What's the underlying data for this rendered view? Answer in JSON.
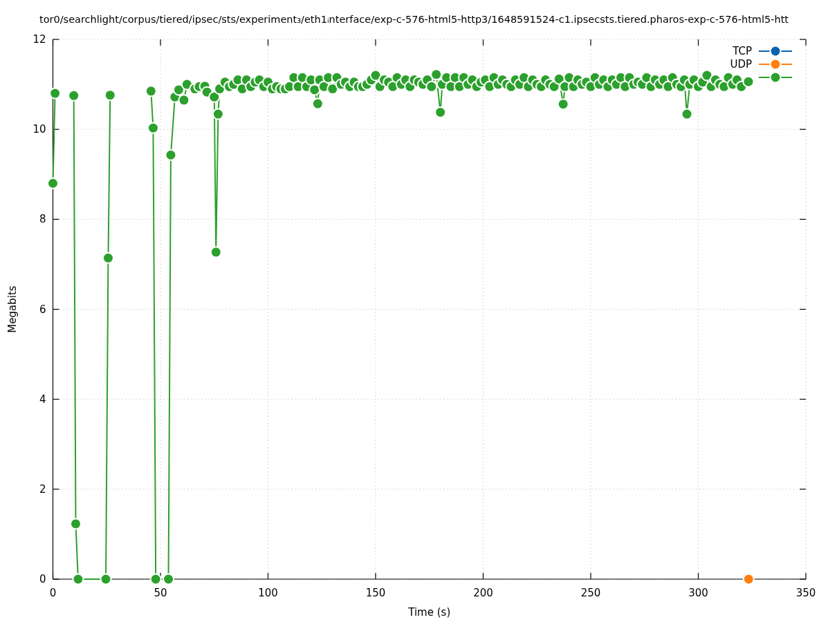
{
  "chart_data": {
    "type": "line",
    "title": "tor0/searchlight/corpus/tiered/ipsec/sts/experiment₃/eth1ᵢnterface/exp-c-576-html5-http3/1648591524-c1.ipsecsts.tiered.pharos-exp-c-576-html5-htt",
    "xlabel": "Time (s)",
    "ylabel": "Megabits",
    "xlim": [
      0,
      350
    ],
    "xticks": [
      0,
      50,
      100,
      150,
      200,
      250,
      300,
      350
    ],
    "ylim": [
      0,
      12
    ],
    "yticks": [
      0,
      2,
      4,
      6,
      8,
      10,
      12
    ],
    "grid": true,
    "legend": "top right",
    "marker": "circle",
    "line_style": "solid",
    "series": [
      {
        "name": "TCP",
        "color": "#0b62b0"
      },
      {
        "name": "UDP",
        "color": "#ff7f0e",
        "x": [
          323.4
        ],
        "values": [
          0
        ]
      },
      {
        "color": "#2ca02c",
        "x": [
          0,
          1,
          5,
          9.7,
          10.6,
          11.7,
          24.6,
          25.7,
          26.6,
          35,
          45.6,
          46.6,
          47.8,
          53.7,
          54.8,
          56.7,
          58.5,
          60.9,
          62.3,
          66,
          68,
          70.6,
          71.6,
          75,
          75.8,
          76.8,
          77.5,
          80,
          82,
          84,
          86,
          88,
          90,
          92,
          94,
          96,
          98,
          100,
          102,
          104,
          106,
          108,
          110,
          112,
          114,
          116,
          118,
          120,
          121.6,
          123.1,
          124,
          126,
          128,
          130,
          132,
          134,
          136,
          138,
          140,
          142,
          144,
          146,
          148,
          150,
          152,
          154,
          156,
          158,
          160,
          162,
          164,
          166,
          168,
          170,
          172,
          174,
          176,
          178.2,
          180.1,
          181,
          183,
          185,
          187,
          189,
          191,
          193,
          195,
          197,
          199,
          201,
          203,
          205,
          207,
          209,
          211,
          213,
          215,
          217,
          219,
          221,
          223,
          225,
          227,
          229,
          231,
          233,
          235.3,
          237.2,
          238,
          240,
          242,
          244,
          246,
          248,
          250,
          252,
          254,
          256,
          258,
          260,
          262,
          264,
          266,
          268,
          270,
          272,
          274,
          276,
          278,
          280,
          282,
          284,
          286,
          288,
          290,
          292,
          293.5,
          294.7,
          296,
          298,
          300,
          302,
          304,
          306,
          308,
          310,
          312,
          314,
          316,
          318,
          320,
          323.3
        ],
        "values": [
          8.8,
          10.8,
          null,
          10.75,
          1.23,
          0,
          0,
          7.14,
          10.76,
          null,
          10.85,
          10.03,
          0,
          0,
          9.43,
          10.72,
          10.88,
          10.65,
          11.0,
          10.9,
          10.95,
          10.96,
          10.83,
          10.72,
          7.27,
          10.34,
          10.9,
          11.05,
          10.95,
          11.0,
          11.1,
          10.9,
          11.1,
          10.95,
          11.05,
          11.1,
          10.95,
          11.05,
          10.9,
          10.95,
          10.9,
          10.9,
          10.95,
          11.15,
          10.95,
          11.15,
          10.95,
          11.1,
          10.88,
          10.57,
          11.1,
          10.95,
          11.15,
          10.9,
          11.15,
          11.0,
          11.05,
          10.95,
          11.05,
          10.95,
          10.95,
          11.0,
          11.1,
          11.2,
          10.95,
          11.1,
          11.05,
          10.95,
          11.15,
          11.0,
          11.1,
          10.95,
          11.1,
          11.05,
          11.0,
          11.1,
          10.95,
          11.22,
          10.38,
          11.0,
          11.15,
          10.95,
          11.15,
          10.95,
          11.15,
          11.0,
          11.1,
          10.95,
          11.05,
          11.1,
          10.95,
          11.15,
          11.0,
          11.1,
          11.0,
          10.95,
          11.1,
          11.0,
          11.15,
          10.95,
          11.1,
          11.0,
          10.95,
          11.1,
          11.0,
          10.95,
          11.12,
          10.56,
          10.95,
          11.15,
          10.95,
          11.1,
          11.0,
          11.05,
          10.95,
          11.15,
          11.0,
          11.1,
          10.95,
          11.1,
          11.0,
          11.15,
          10.95,
          11.15,
          11.0,
          11.05,
          11.0,
          11.15,
          10.95,
          11.1,
          11.0,
          11.1,
          10.95,
          11.15,
          11.0,
          10.95,
          11.1,
          10.34,
          11.0,
          11.1,
          10.95,
          11.05,
          11.2,
          10.95,
          11.1,
          11.0,
          10.95,
          11.15,
          11.0,
          11.1,
          10.95,
          11.06
        ]
      }
    ]
  }
}
